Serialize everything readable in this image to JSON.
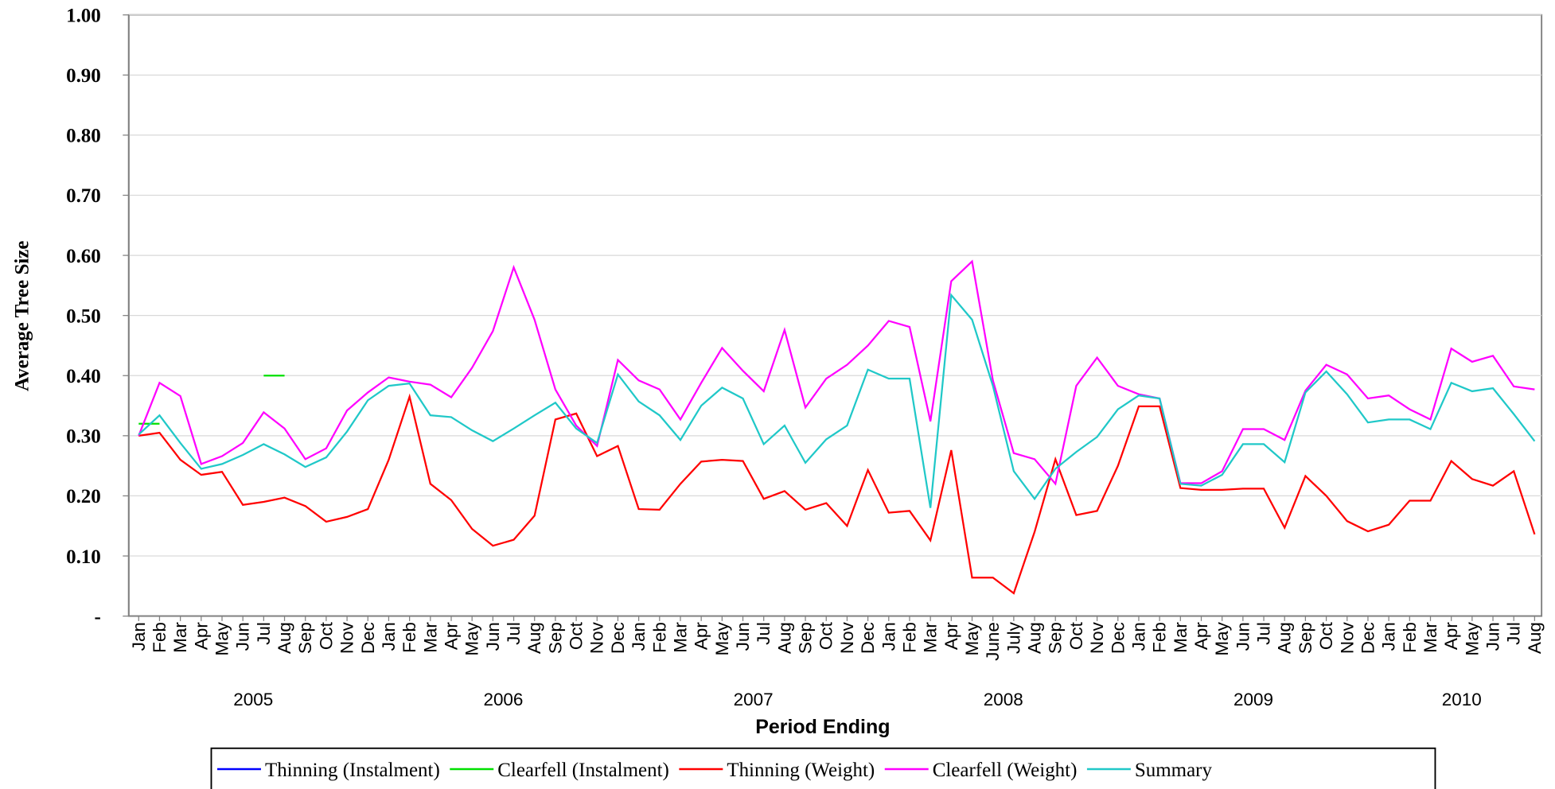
{
  "chart_data": {
    "type": "line",
    "y_label": "Average Tree Size",
    "x_label": "Period Ending",
    "categories": [
      "Jan",
      "Feb",
      "Mar",
      "Apr",
      "May",
      "Jun",
      "Jul",
      "Aug",
      "Sep",
      "Oct",
      "Nov",
      "Dec",
      "Jan",
      "Feb",
      "Mar",
      "Apr",
      "May",
      "Jun",
      "Jul",
      "Aug",
      "Sep",
      "Oct",
      "Nov",
      "Dec",
      "Jan",
      "Feb",
      "Mar",
      "Apr",
      "May",
      "Jun",
      "Jul",
      "Aug",
      "Sep",
      "Oct",
      "Nov",
      "Dec",
      "Jan",
      "Feb",
      "Mar",
      "Apr",
      "May",
      "June",
      "July",
      "Aug",
      "Sep",
      "Oct",
      "Nov",
      "Dec",
      "Jan",
      "Feb",
      "Mar",
      "Apr",
      "May",
      "Jun",
      "Jul",
      "Aug",
      "Sep",
      "Oct",
      "Nov",
      "Dec",
      "Jan",
      "Feb",
      "Mar",
      "Apr",
      "May",
      "Jun",
      "Jul",
      "Aug"
    ],
    "years": [
      "2005",
      "2006",
      "2007",
      "2008",
      "2009",
      "2010"
    ],
    "ylim": [
      0,
      1
    ],
    "yticks": [
      {
        "value": 0,
        "label": "-"
      },
      {
        "value": 0.1,
        "label": "0.10"
      },
      {
        "value": 0.2,
        "label": "0.20"
      },
      {
        "value": 0.3,
        "label": "0.30"
      },
      {
        "value": 0.4,
        "label": "0.40"
      },
      {
        "value": 0.5,
        "label": "0.50"
      },
      {
        "value": 0.6,
        "label": "0.60"
      },
      {
        "value": 0.7,
        "label": "0.70"
      },
      {
        "value": 0.8,
        "label": "0.80"
      },
      {
        "value": 0.9,
        "label": "0.90"
      },
      {
        "value": 1,
        "label": "1.00"
      }
    ],
    "grid": true,
    "series": [
      {
        "name": "Thinning (Instalment)",
        "color": "#0000ff",
        "values": [
          null,
          null,
          null,
          null,
          null,
          null,
          null,
          null,
          null,
          null,
          null,
          null,
          null,
          null,
          null,
          null,
          null,
          null,
          null,
          null,
          null,
          null,
          null,
          null,
          null,
          null,
          null,
          null,
          null,
          null,
          null,
          null,
          null,
          null,
          null,
          null,
          null,
          null,
          null,
          null,
          null,
          null,
          null,
          null,
          null,
          null,
          null,
          null,
          null,
          null,
          null,
          null,
          null,
          null,
          null,
          null,
          null,
          null,
          null,
          null,
          null,
          null,
          null,
          null,
          null,
          null,
          null,
          null
        ]
      },
      {
        "name": "Clearfell (Instalment)",
        "color": "#00e000",
        "values": [
          0.32,
          0.32,
          null,
          null,
          null,
          null,
          0.4,
          0.4,
          null,
          null,
          null,
          null,
          null,
          null,
          null,
          null,
          null,
          null,
          null,
          null,
          null,
          null,
          null,
          null,
          null,
          null,
          null,
          null,
          null,
          null,
          null,
          null,
          null,
          null,
          null,
          null,
          null,
          null,
          null,
          null,
          null,
          null,
          null,
          null,
          null,
          null,
          null,
          null,
          null,
          null,
          null,
          null,
          null,
          null,
          null,
          null,
          null,
          null,
          null,
          null,
          null,
          null,
          null,
          null,
          null,
          null,
          null,
          null
        ]
      },
      {
        "name": "Thinning (Weight)",
        "color": "#ff0000",
        "values": [
          0.3,
          0.305,
          0.26,
          0.235,
          0.24,
          0.185,
          0.19,
          0.197,
          0.183,
          0.157,
          0.165,
          0.178,
          0.26,
          0.365,
          0.22,
          0.193,
          0.145,
          0.117,
          0.127,
          0.167,
          0.327,
          0.337,
          0.266,
          0.283,
          0.178,
          0.177,
          0.22,
          0.257,
          0.26,
          0.258,
          0.195,
          0.208,
          0.177,
          0.188,
          0.15,
          0.243,
          0.172,
          0.175,
          0.126,
          0.276,
          0.064,
          0.064,
          0.038,
          0.14,
          0.261,
          0.168,
          0.175,
          0.25,
          0.349,
          0.349,
          0.213,
          0.21,
          0.21,
          0.212,
          0.212,
          0.147,
          0.233,
          0.2,
          0.158,
          0.141,
          0.152,
          0.192,
          0.192,
          0.258,
          0.228,
          0.217,
          0.241,
          0.136
        ]
      },
      {
        "name": "Clearfell (Weight)",
        "color": "#ff00ff",
        "values": [
          0.3,
          0.388,
          0.366,
          0.253,
          0.266,
          0.288,
          0.339,
          0.312,
          0.261,
          0.279,
          0.342,
          0.372,
          0.397,
          0.39,
          0.385,
          0.364,
          0.413,
          0.474,
          0.58,
          0.493,
          0.377,
          0.317,
          0.283,
          0.426,
          0.392,
          0.377,
          0.327,
          0.388,
          0.446,
          0.408,
          0.374,
          0.476,
          0.347,
          0.395,
          0.418,
          0.45,
          0.491,
          0.481,
          0.324,
          0.557,
          0.59,
          0.392,
          0.271,
          0.261,
          0.22,
          0.383,
          0.43,
          0.383,
          0.369,
          0.362,
          0.221,
          0.221,
          0.241,
          0.311,
          0.311,
          0.293,
          0.375,
          0.418,
          0.402,
          0.362,
          0.367,
          0.344,
          0.327,
          0.445,
          0.423,
          0.433,
          0.382,
          0.377
        ]
      },
      {
        "name": "Summary",
        "color": "#20c8c8",
        "values": [
          0.302,
          0.334,
          0.288,
          0.245,
          0.253,
          0.268,
          0.286,
          0.269,
          0.248,
          0.264,
          0.307,
          0.359,
          0.383,
          0.387,
          0.334,
          0.331,
          0.309,
          0.291,
          0.312,
          0.334,
          0.355,
          0.312,
          0.288,
          0.402,
          0.357,
          0.334,
          0.293,
          0.35,
          0.38,
          0.362,
          0.286,
          0.317,
          0.255,
          0.294,
          0.317,
          0.41,
          0.395,
          0.395,
          0.18,
          0.534,
          0.493,
          0.383,
          0.241,
          0.195,
          0.245,
          0.273,
          0.298,
          0.344,
          0.367,
          0.362,
          0.22,
          0.217,
          0.235,
          0.286,
          0.286,
          0.256,
          0.372,
          0.407,
          0.369,
          0.322,
          0.327,
          0.327,
          0.311,
          0.388,
          0.374,
          0.379,
          0.336,
          0.291
        ]
      }
    ]
  }
}
